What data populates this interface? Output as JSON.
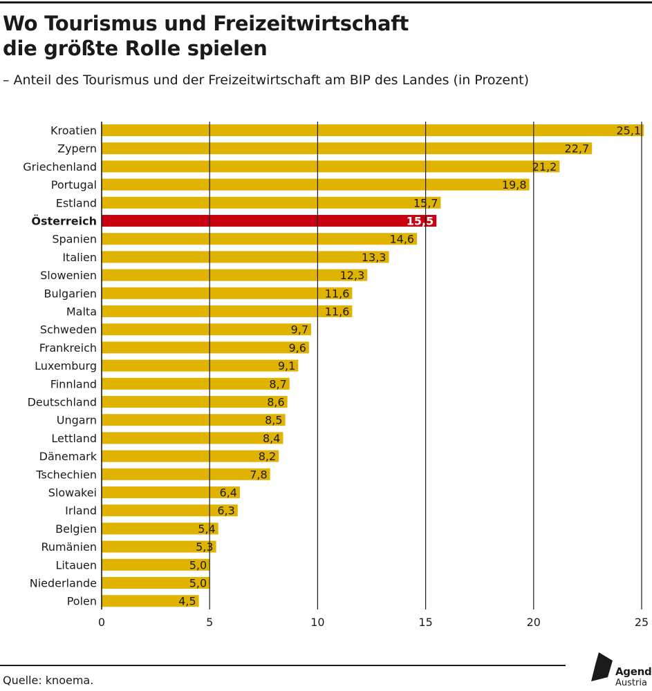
{
  "header": {
    "title_line1": "Wo Tourismus und Freizeitwirtschaft",
    "title_line2": "die größte Rolle spielen",
    "subtitle": "– Anteil des Tourismus und der Freizeitwirtschaft am BIP des Landes (in Prozent)"
  },
  "footer": {
    "source": "Quelle: knoema.",
    "logo_line1": "Agenda",
    "logo_line2": "Austria"
  },
  "colors": {
    "bar": "#e0b300",
    "highlight": "#c8000f",
    "grid": "#1a1a1a",
    "text": "#1a1a1a"
  },
  "chart_data": {
    "type": "bar",
    "orientation": "horizontal",
    "categories": [
      "Kroatien",
      "Zypern",
      "Griechenland",
      "Portugal",
      "Estland",
      "Österreich",
      "Spanien",
      "Italien",
      "Slowenien",
      "Bulgarien",
      "Malta",
      "Schweden",
      "Frankreich",
      "Luxemburg",
      "Finnland",
      "Deutschland",
      "Ungarn",
      "Lettland",
      "Dänemark",
      "Tschechien",
      "Slowakei",
      "Irland",
      "Belgien",
      "Rumänien",
      "Litauen",
      "Niederlande",
      "Polen"
    ],
    "values": [
      25.1,
      22.7,
      21.2,
      19.8,
      15.7,
      15.5,
      14.6,
      13.3,
      12.3,
      11.6,
      11.6,
      9.7,
      9.6,
      9.1,
      8.7,
      8.6,
      8.5,
      8.4,
      8.2,
      7.8,
      6.4,
      6.3,
      5.4,
      5.3,
      5.0,
      5.0,
      4.5
    ],
    "value_labels": [
      "25,1",
      "22,7",
      "21,2",
      "19,8",
      "15,7",
      "15,5",
      "14,6",
      "13,3",
      "12,3",
      "11,6",
      "11,6",
      "9,7",
      "9,6",
      "9,1",
      "8,7",
      "8,6",
      "8,5",
      "8,4",
      "8,2",
      "7,8",
      "6,4",
      "6,3",
      "5,4",
      "5,3",
      "5,0",
      "5,0",
      "4,5"
    ],
    "highlight": "Österreich",
    "xlim": [
      0,
      25
    ],
    "xticks": [
      0,
      5,
      10,
      15,
      20,
      25
    ],
    "grid": true
  }
}
